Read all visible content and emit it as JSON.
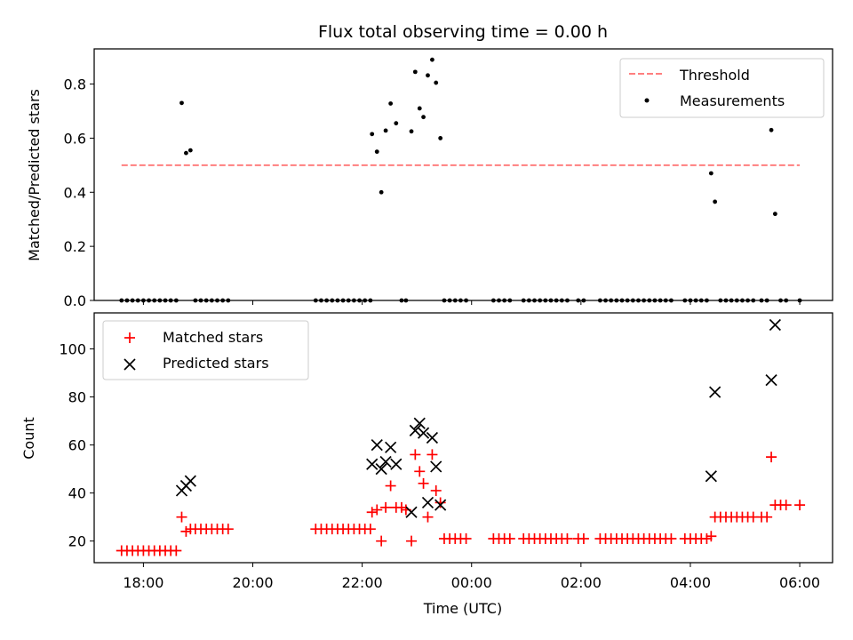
{
  "chart_data": [
    {
      "type": "scatter",
      "title": "Flux total observing time = 0.00 h",
      "xlabel": "",
      "ylabel": "Matched/Predicted stars",
      "xlim_hours": [
        17.1,
        30.6
      ],
      "ylim": [
        0.0,
        0.93
      ],
      "yticks": [
        "0.0",
        "0.2",
        "0.4",
        "0.6",
        "0.8"
      ],
      "grid": false,
      "legend_position": "upper right",
      "threshold": {
        "name": "Threshold",
        "value": 0.5,
        "x": [
          17.6,
          30.0
        ],
        "color": "#ff7f7f"
      },
      "series": [
        {
          "name": "Measurements",
          "color": "#000000",
          "points": [
            [
              17.6,
              0
            ],
            [
              17.7,
              0
            ],
            [
              17.8,
              0
            ],
            [
              17.9,
              0
            ],
            [
              18.0,
              0
            ],
            [
              18.1,
              0
            ],
            [
              18.2,
              0
            ],
            [
              18.3,
              0
            ],
            [
              18.4,
              0
            ],
            [
              18.5,
              0
            ],
            [
              18.6,
              0
            ],
            [
              18.7,
              0.73
            ],
            [
              18.78,
              0.545
            ],
            [
              18.86,
              0.555
            ],
            [
              18.95,
              0
            ],
            [
              19.05,
              0
            ],
            [
              19.15,
              0
            ],
            [
              19.25,
              0
            ],
            [
              19.35,
              0
            ],
            [
              19.45,
              0
            ],
            [
              19.55,
              0
            ],
            [
              21.15,
              0
            ],
            [
              21.25,
              0
            ],
            [
              21.35,
              0
            ],
            [
              21.45,
              0
            ],
            [
              21.55,
              0
            ],
            [
              21.65,
              0
            ],
            [
              21.75,
              0
            ],
            [
              21.85,
              0
            ],
            [
              21.95,
              0
            ],
            [
              22.05,
              0
            ],
            [
              22.15,
              0
            ],
            [
              22.18,
              0.615
            ],
            [
              22.27,
              0.55
            ],
            [
              22.35,
              0.4
            ],
            [
              22.43,
              0.628
            ],
            [
              22.52,
              0.728
            ],
            [
              22.62,
              0.655
            ],
            [
              22.72,
              0
            ],
            [
              22.8,
              0
            ],
            [
              22.9,
              0.625
            ],
            [
              22.97,
              0.845
            ],
            [
              23.05,
              0.71
            ],
            [
              23.12,
              0.678
            ],
            [
              23.2,
              0.832
            ],
            [
              23.28,
              0.89
            ],
            [
              23.35,
              0.805
            ],
            [
              23.43,
              0.6
            ],
            [
              23.5,
              0
            ],
            [
              23.6,
              0
            ],
            [
              23.7,
              0
            ],
            [
              23.8,
              0
            ],
            [
              23.9,
              0
            ],
            [
              24.4,
              0
            ],
            [
              24.5,
              0
            ],
            [
              24.6,
              0
            ],
            [
              24.7,
              0
            ],
            [
              24.95,
              0
            ],
            [
              25.05,
              0
            ],
            [
              25.15,
              0
            ],
            [
              25.25,
              0
            ],
            [
              25.35,
              0
            ],
            [
              25.45,
              0
            ],
            [
              25.55,
              0
            ],
            [
              25.65,
              0
            ],
            [
              25.75,
              0
            ],
            [
              25.95,
              0
            ],
            [
              26.05,
              0
            ],
            [
              26.35,
              0
            ],
            [
              26.45,
              0
            ],
            [
              26.55,
              0
            ],
            [
              26.65,
              0
            ],
            [
              26.75,
              0
            ],
            [
              26.85,
              0
            ],
            [
              26.95,
              0
            ],
            [
              27.05,
              0
            ],
            [
              27.15,
              0
            ],
            [
              27.25,
              0
            ],
            [
              27.35,
              0
            ],
            [
              27.45,
              0
            ],
            [
              27.55,
              0
            ],
            [
              27.65,
              0
            ],
            [
              27.9,
              0
            ],
            [
              28.0,
              0
            ],
            [
              28.1,
              0
            ],
            [
              28.2,
              0
            ],
            [
              28.3,
              0
            ],
            [
              28.38,
              0.47
            ],
            [
              28.45,
              0.365
            ],
            [
              28.55,
              0
            ],
            [
              28.65,
              0
            ],
            [
              28.75,
              0
            ],
            [
              28.85,
              0
            ],
            [
              28.95,
              0
            ],
            [
              29.05,
              0
            ],
            [
              29.15,
              0
            ],
            [
              29.3,
              0
            ],
            [
              29.4,
              0
            ],
            [
              29.48,
              0.63
            ],
            [
              29.55,
              0.32
            ],
            [
              29.65,
              0
            ],
            [
              29.75,
              0
            ],
            [
              30.0,
              0
            ]
          ]
        }
      ]
    },
    {
      "type": "scatter",
      "title": "",
      "xlabel": "Time (UTC)",
      "ylabel": "Count",
      "xlim_hours": [
        17.1,
        30.6
      ],
      "ylim": [
        11,
        115
      ],
      "xticks": [
        {
          "hour": 18,
          "label": "18:00"
        },
        {
          "hour": 20,
          "label": "20:00"
        },
        {
          "hour": 22,
          "label": "22:00"
        },
        {
          "hour": 24,
          "label": "00:00"
        },
        {
          "hour": 26,
          "label": "02:00"
        },
        {
          "hour": 28,
          "label": "04:00"
        },
        {
          "hour": 30,
          "label": "06:00"
        }
      ],
      "yticks": [
        "20",
        "40",
        "60",
        "80",
        "100"
      ],
      "grid": false,
      "legend_position": "upper left",
      "series": [
        {
          "name": "Matched stars",
          "marker": "plus",
          "color": "#ff0000",
          "points": [
            [
              17.6,
              16
            ],
            [
              17.7,
              16
            ],
            [
              17.8,
              16
            ],
            [
              17.9,
              16
            ],
            [
              18.0,
              16
            ],
            [
              18.1,
              16
            ],
            [
              18.2,
              16
            ],
            [
              18.3,
              16
            ],
            [
              18.4,
              16
            ],
            [
              18.5,
              16
            ],
            [
              18.6,
              16
            ],
            [
              18.7,
              30
            ],
            [
              18.78,
              24
            ],
            [
              18.86,
              25
            ],
            [
              18.95,
              25
            ],
            [
              19.05,
              25
            ],
            [
              19.15,
              25
            ],
            [
              19.25,
              25
            ],
            [
              19.35,
              25
            ],
            [
              19.45,
              25
            ],
            [
              19.55,
              25
            ],
            [
              21.15,
              25
            ],
            [
              21.25,
              25
            ],
            [
              21.35,
              25
            ],
            [
              21.45,
              25
            ],
            [
              21.55,
              25
            ],
            [
              21.65,
              25
            ],
            [
              21.75,
              25
            ],
            [
              21.85,
              25
            ],
            [
              21.95,
              25
            ],
            [
              22.05,
              25
            ],
            [
              22.15,
              25
            ],
            [
              22.18,
              32
            ],
            [
              22.27,
              33
            ],
            [
              22.35,
              20
            ],
            [
              22.43,
              34
            ],
            [
              22.52,
              43
            ],
            [
              22.62,
              34
            ],
            [
              22.72,
              34
            ],
            [
              22.8,
              33
            ],
            [
              22.9,
              20
            ],
            [
              22.97,
              56
            ],
            [
              23.05,
              49
            ],
            [
              23.12,
              44
            ],
            [
              23.2,
              30
            ],
            [
              23.28,
              56
            ],
            [
              23.35,
              41
            ],
            [
              23.43,
              36
            ],
            [
              23.5,
              21
            ],
            [
              23.6,
              21
            ],
            [
              23.7,
              21
            ],
            [
              23.8,
              21
            ],
            [
              23.9,
              21
            ],
            [
              24.4,
              21
            ],
            [
              24.5,
              21
            ],
            [
              24.6,
              21
            ],
            [
              24.7,
              21
            ],
            [
              24.95,
              21
            ],
            [
              25.05,
              21
            ],
            [
              25.15,
              21
            ],
            [
              25.25,
              21
            ],
            [
              25.35,
              21
            ],
            [
              25.45,
              21
            ],
            [
              25.55,
              21
            ],
            [
              25.65,
              21
            ],
            [
              25.75,
              21
            ],
            [
              25.95,
              21
            ],
            [
              26.05,
              21
            ],
            [
              26.35,
              21
            ],
            [
              26.45,
              21
            ],
            [
              26.55,
              21
            ],
            [
              26.65,
              21
            ],
            [
              26.75,
              21
            ],
            [
              26.85,
              21
            ],
            [
              26.95,
              21
            ],
            [
              27.05,
              21
            ],
            [
              27.15,
              21
            ],
            [
              27.25,
              21
            ],
            [
              27.35,
              21
            ],
            [
              27.45,
              21
            ],
            [
              27.55,
              21
            ],
            [
              27.65,
              21
            ],
            [
              27.9,
              21
            ],
            [
              28.0,
              21
            ],
            [
              28.1,
              21
            ],
            [
              28.2,
              21
            ],
            [
              28.3,
              21
            ],
            [
              28.38,
              22
            ],
            [
              28.45,
              30
            ],
            [
              28.55,
              30
            ],
            [
              28.65,
              30
            ],
            [
              28.75,
              30
            ],
            [
              28.85,
              30
            ],
            [
              28.95,
              30
            ],
            [
              29.05,
              30
            ],
            [
              29.15,
              30
            ],
            [
              29.3,
              30
            ],
            [
              29.4,
              30
            ],
            [
              29.48,
              55
            ],
            [
              29.55,
              35
            ],
            [
              29.65,
              35
            ],
            [
              29.75,
              35
            ],
            [
              30.0,
              35
            ]
          ]
        },
        {
          "name": "Predicted stars",
          "marker": "x",
          "color": "#000000",
          "points": [
            [
              18.7,
              41
            ],
            [
              18.78,
              43
            ],
            [
              18.86,
              45
            ],
            [
              22.18,
              52
            ],
            [
              22.27,
              60
            ],
            [
              22.35,
              50
            ],
            [
              22.43,
              53
            ],
            [
              22.52,
              59
            ],
            [
              22.62,
              52
            ],
            [
              22.9,
              32
            ],
            [
              22.97,
              66
            ],
            [
              23.05,
              69
            ],
            [
              23.12,
              65
            ],
            [
              23.2,
              36
            ],
            [
              23.28,
              63
            ],
            [
              23.35,
              51
            ],
            [
              23.43,
              35
            ],
            [
              28.38,
              47
            ],
            [
              28.45,
              82
            ],
            [
              29.48,
              87
            ],
            [
              29.55,
              110
            ]
          ]
        }
      ]
    }
  ]
}
